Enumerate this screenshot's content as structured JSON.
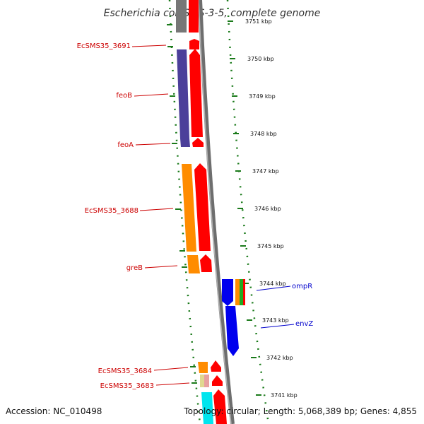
{
  "title": "Escherichia coli SMS-3-5, complete genome",
  "footer": {
    "accession": "Accession: NC_010498",
    "summary": "Topology: circular; Length: 5,068,389 bp; Genes: 4,855"
  },
  "scale_labels": [
    "3751 kbp",
    "3750 kbp",
    "3749 kbp",
    "3748 kbp",
    "3747 kbp",
    "3746 kbp",
    "3745 kbp",
    "3744 kbp",
    "3743 kbp",
    "3742 kbp",
    "3741 kbp"
  ],
  "gene_labels_left": [
    "EcSMS35_3691",
    "feoB",
    "feoA",
    "EcSMS35_3688",
    "greB",
    "EcSMS35_3684",
    "EcSMS35_3683"
  ],
  "gene_labels_right": [
    "ompR",
    "envZ"
  ],
  "colors": {
    "left_label": "#cc0000",
    "right_label": "#0000cc",
    "backbone": "#888888",
    "tick": "#1a7a1a",
    "orf_red": "#ff0000",
    "purple": "#4b3f9a",
    "orange": "#ff8c00",
    "blue": "#0000ee",
    "green": "#22aa22",
    "gray": "#777777",
    "cyan": "#00e5ee",
    "pink": "#e8a0a0",
    "khaki": "#e0d890"
  }
}
